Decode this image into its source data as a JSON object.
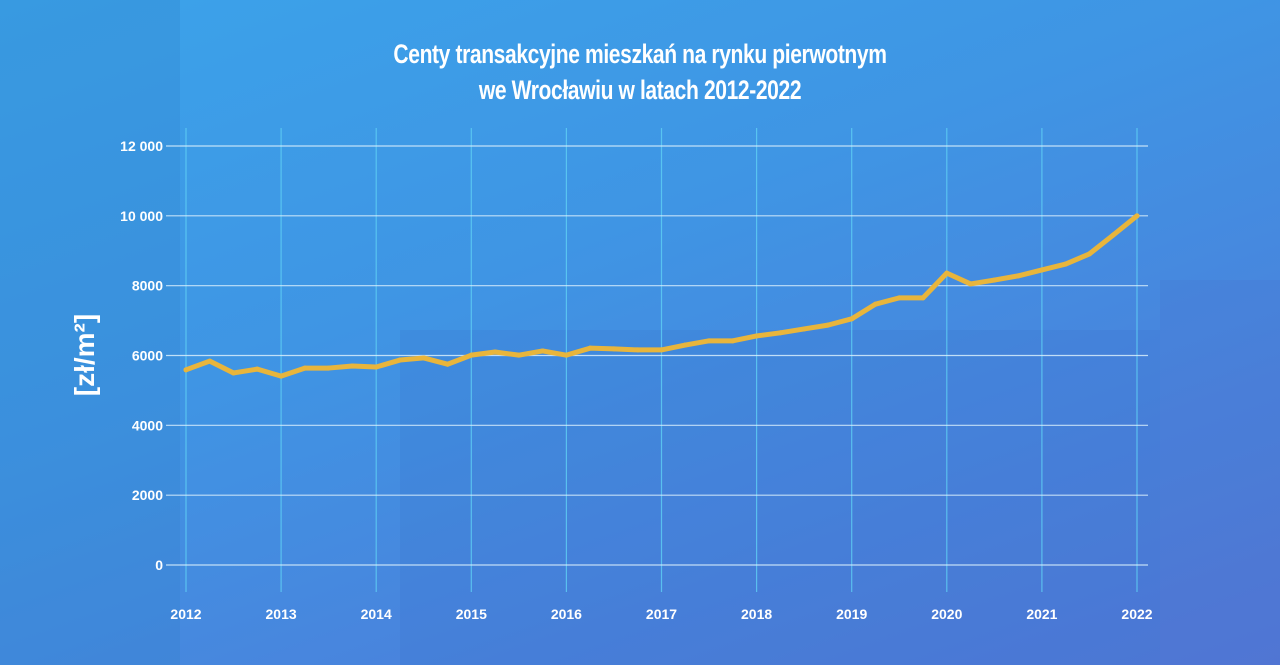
{
  "chart_data": {
    "type": "line",
    "title": "Centy transakcyjne mieszkań na rynku pierwotnym\nwe Wrocławiu w latach 2012-2022",
    "title_lines": [
      "Centy transakcyjne mieszkań na rynku pierwotnym",
      "we Wrocławiu w latach 2012-2022"
    ],
    "xlabel": "",
    "ylabel": "[zł/m²]",
    "xlim": [
      2012,
      2022
    ],
    "ylim": [
      0,
      12000
    ],
    "x_ticks": [
      "2012",
      "2013",
      "2014",
      "2015",
      "2016",
      "2017",
      "2018",
      "2019",
      "2020",
      "2021",
      "2022"
    ],
    "y_ticks": [
      "0",
      "2000",
      "4000",
      "6000",
      "8000",
      "10 000",
      "12 000"
    ],
    "y_tick_values": [
      0,
      2000,
      4000,
      6000,
      8000,
      10000,
      12000
    ],
    "grid": true,
    "line_color": "#e8b53c",
    "x": [
      2012,
      2012.25,
      2012.5,
      2012.75,
      2013,
      2013.25,
      2013.5,
      2013.75,
      2014,
      2014.25,
      2014.5,
      2014.75,
      2015,
      2015.25,
      2015.5,
      2015.75,
      2016,
      2016.25,
      2016.5,
      2016.75,
      2017,
      2017.25,
      2017.5,
      2017.75,
      2018,
      2018.25,
      2018.5,
      2018.75,
      2019,
      2019.25,
      2019.5,
      2019.75,
      2020,
      2020.25,
      2020.5,
      2020.75,
      2021,
      2021.25,
      2021.5,
      2021.75,
      2022
    ],
    "values": [
      5590,
      5840,
      5500,
      5610,
      5410,
      5640,
      5640,
      5700,
      5670,
      5870,
      5930,
      5750,
      6010,
      6100,
      6010,
      6130,
      6010,
      6210,
      6190,
      6160,
      6160,
      6300,
      6420,
      6420,
      6560,
      6650,
      6760,
      6870,
      7050,
      7470,
      7650,
      7650,
      8360,
      8050,
      8160,
      8280,
      8450,
      8620,
      8910,
      9450,
      10000
    ]
  }
}
